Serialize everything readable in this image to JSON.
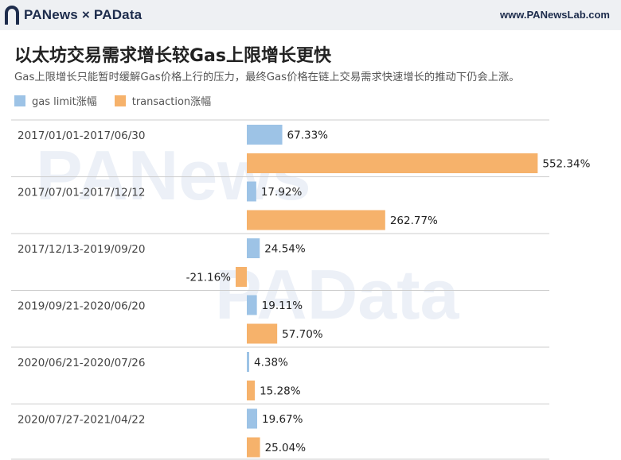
{
  "header": {
    "logo_text": "PANews × PAData",
    "site_url": "www.PANewsLab.com"
  },
  "watermarks": [
    "PANews",
    "PAData"
  ],
  "colors": {
    "gas_limit": "#9dc3e6",
    "transaction": "#f6b26b",
    "divider": "#cccccc"
  },
  "chart_data": {
    "type": "bar",
    "title": "以太坊交易需求增长较Gas上限增长更快",
    "subtitle": "Gas上限增长只能暂时缓解Gas价格上行的压力，最终Gas价格在链上交易需求快速增长的推动下仍会上涨。",
    "orientation": "horizontal",
    "legend_position": "top-left",
    "categories": [
      "2017/01/01-2017/06/30",
      "2017/07/01-2017/12/12",
      "2017/12/13-2019/09/20",
      "2019/09/21-2020/06/20",
      "2020/06/21-2020/07/26",
      "2020/07/27-2021/04/22"
    ],
    "series": [
      {
        "name": "gas limit涨幅",
        "values": [
          67.33,
          17.92,
          24.54,
          19.11,
          4.38,
          19.67
        ],
        "labels": [
          "67.33%",
          "17.92%",
          "24.54%",
          "19.11%",
          "4.38%",
          "19.67%"
        ]
      },
      {
        "name": "transaction涨幅",
        "values": [
          552.34,
          262.77,
          -21.16,
          57.7,
          15.28,
          25.04
        ],
        "labels": [
          "552.34%",
          "262.77%",
          "-21.16%",
          "57.70%",
          "15.28%",
          "25.04%"
        ]
      }
    ],
    "unit": "%",
    "grid": false
  }
}
